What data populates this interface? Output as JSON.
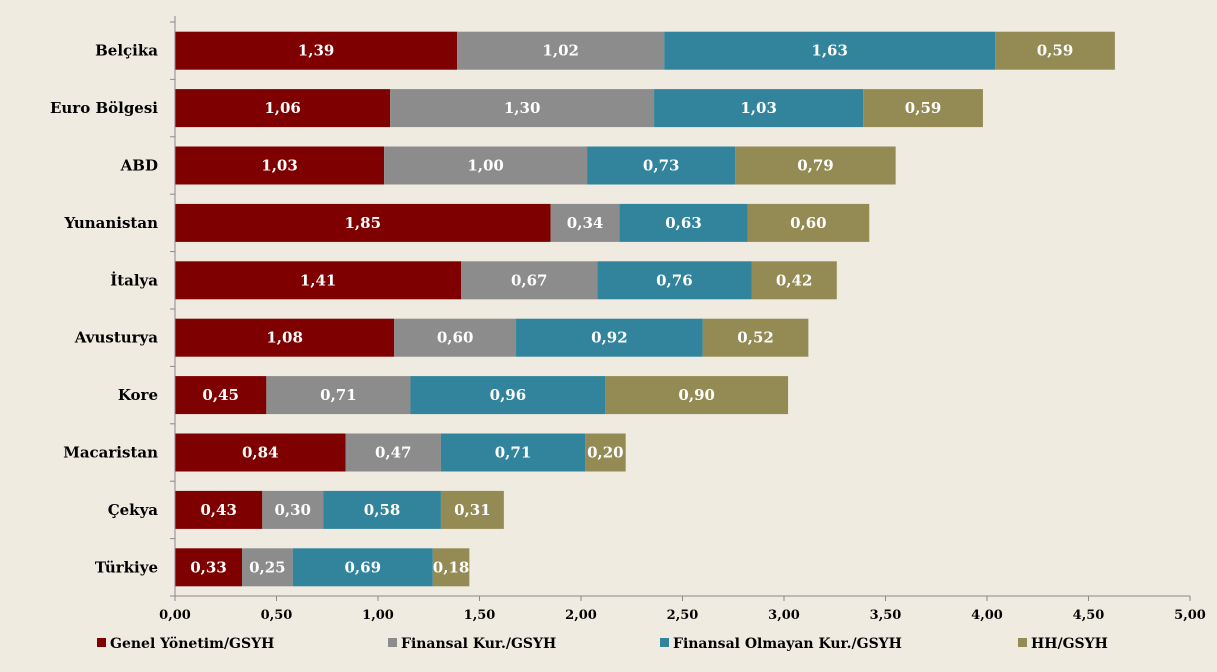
{
  "chart_data": {
    "type": "bar",
    "orientation": "horizontal",
    "stacked": true,
    "categories": [
      "Belçika",
      "Euro Bölgesi",
      "ABD",
      "Yunanistan",
      "İtalya",
      "Avusturya",
      "Kore",
      "Macaristan",
      "Çekya",
      "Türkiye"
    ],
    "series": [
      {
        "name": "Genel Yönetim/GSYH",
        "color": "#7f0000",
        "values": [
          1.39,
          1.06,
          1.03,
          1.85,
          1.41,
          1.08,
          0.45,
          0.84,
          0.43,
          0.33
        ],
        "labels": [
          "1,39",
          "1,06",
          "1,03",
          "1,85",
          "1,41",
          "1,08",
          "0,45",
          "0,84",
          "0,43",
          "0,33"
        ]
      },
      {
        "name": "Finansal Kur./GSYH",
        "color": "#8c8c8c",
        "values": [
          1.02,
          1.3,
          1.0,
          0.34,
          0.67,
          0.6,
          0.71,
          0.47,
          0.3,
          0.25
        ],
        "labels": [
          "1,02",
          "1,30",
          "1,00",
          "0,34",
          "0,67",
          "0,60",
          "0,71",
          "0,47",
          "0,30",
          "0,25"
        ]
      },
      {
        "name": "Finansal Olmayan Kur./GSYH",
        "color": "#31849b",
        "values": [
          1.63,
          1.03,
          0.73,
          0.63,
          0.76,
          0.92,
          0.96,
          0.71,
          0.58,
          0.69
        ],
        "labels": [
          "1,63",
          "1,03",
          "0,73",
          "0,63",
          "0,76",
          "0,92",
          "0,96",
          "0,71",
          "0,58",
          "0,69"
        ]
      },
      {
        "name": "HH/GSYH",
        "color": "#948a54",
        "values": [
          0.59,
          0.59,
          0.79,
          0.6,
          0.42,
          0.52,
          0.9,
          0.2,
          0.31,
          0.18
        ],
        "labels": [
          "0,59",
          "0,59",
          "0,79",
          "0,60",
          "0,42",
          "0,52",
          "0,90",
          "0,20",
          "0,31",
          "0,18"
        ]
      }
    ],
    "xlim": [
      0,
      5
    ],
    "xticks": [
      "0,00",
      "0,50",
      "1,00",
      "1,50",
      "2,00",
      "2,50",
      "3,00",
      "3,50",
      "4,00",
      "4,50",
      "5,00"
    ],
    "grid": false,
    "legend_position": "bottom",
    "title": "",
    "xlabel": "",
    "ylabel": ""
  }
}
